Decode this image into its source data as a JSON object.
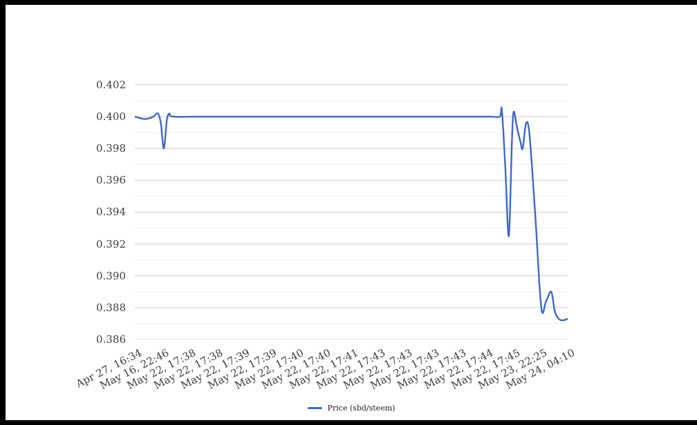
{
  "page": {
    "frame_color": "#000000",
    "background": "#ffffff"
  },
  "chart_data": {
    "type": "line",
    "title": "",
    "legend": {
      "position": "bottom",
      "label": "Price (sbd/steem)"
    },
    "series": [
      {
        "name": "Price (sbd/steem)",
        "color": "#3e68c8"
      }
    ],
    "x_tick_labels": [
      "Apr 27, 16:34",
      "May 16, 22:46",
      "May 22, 17:38",
      "May 22, 17:38",
      "May 22, 17:39",
      "May 22, 17:39",
      "May 22, 17:40",
      "May 22, 17:40",
      "May 22, 17:41",
      "May 22, 17:43",
      "May 22, 17:43",
      "May 22, 17:43",
      "May 22, 17:43",
      "May 22, 17:44",
      "May 22, 17:45",
      "May 23, 22:25",
      "May 24, 04:10"
    ],
    "y_tick_labels": [
      "0.402",
      "0.400",
      "0.398",
      "0.396",
      "0.394",
      "0.392",
      "0.390",
      "0.388",
      "0.386"
    ],
    "y_major_ticks": [
      0.402,
      0.4,
      0.398,
      0.396,
      0.394,
      0.392,
      0.39,
      0.388,
      0.386
    ],
    "y_minor_ticks": [
      0.401,
      0.399,
      0.397,
      0.395,
      0.393,
      0.391,
      0.389,
      0.387
    ],
    "ylim": [
      0.386,
      0.4023
    ],
    "grid": {
      "major_color": "#cccccc",
      "minor_color": "#ececec"
    },
    "axis_text_color": "#3d3d3d",
    "points": [
      [
        0.0,
        0.4
      ],
      [
        0.013,
        0.3999
      ],
      [
        0.024,
        0.39985
      ],
      [
        0.034,
        0.3999
      ],
      [
        0.043,
        0.4
      ],
      [
        0.053,
        0.4002
      ],
      [
        0.06,
        0.3996
      ],
      [
        0.067,
        0.398
      ],
      [
        0.074,
        0.3998
      ],
      [
        0.08,
        0.4002
      ],
      [
        0.088,
        0.4
      ],
      [
        0.15,
        0.4
      ],
      [
        0.3,
        0.4
      ],
      [
        0.45,
        0.4
      ],
      [
        0.6,
        0.4
      ],
      [
        0.75,
        0.4
      ],
      [
        0.82,
        0.4
      ],
      [
        0.843,
        0.4
      ],
      [
        0.848,
        0.4004
      ],
      [
        0.856,
        0.3967
      ],
      [
        0.864,
        0.3925
      ],
      [
        0.871,
        0.3983
      ],
      [
        0.875,
        0.4003
      ],
      [
        0.883,
        0.3993
      ],
      [
        0.891,
        0.3984
      ],
      [
        0.896,
        0.398
      ],
      [
        0.904,
        0.3996
      ],
      [
        0.912,
        0.3988
      ],
      [
        0.925,
        0.3938
      ],
      [
        0.939,
        0.388
      ],
      [
        0.95,
        0.3884
      ],
      [
        0.962,
        0.389
      ],
      [
        0.97,
        0.3878
      ],
      [
        0.979,
        0.3873
      ],
      [
        0.989,
        0.3872
      ],
      [
        1.0,
        0.3873
      ]
    ]
  }
}
